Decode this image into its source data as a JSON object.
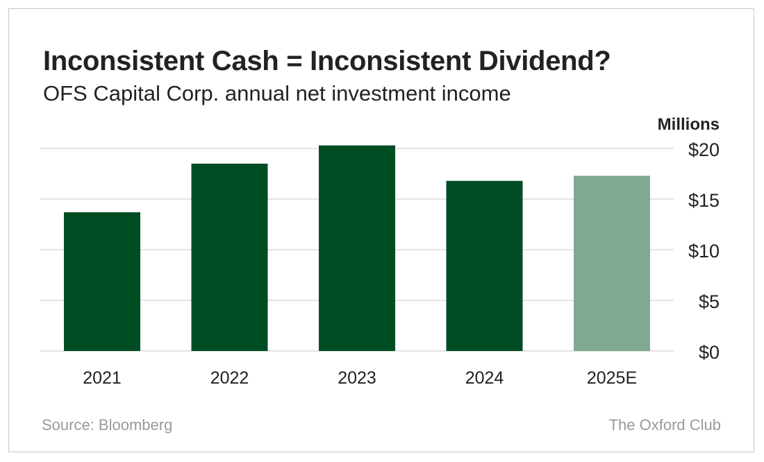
{
  "chart_data": {
    "type": "bar",
    "title": "Inconsistent Cash = Inconsistent Dividend?",
    "subtitle": "OFS Capital Corp. annual net investment income",
    "unit_label": "Millions",
    "categories": [
      "2021",
      "2022",
      "2023",
      "2024",
      "2025E"
    ],
    "values": [
      13.7,
      18.5,
      20.3,
      16.8,
      17.3
    ],
    "estimated": [
      false,
      false,
      false,
      false,
      true
    ],
    "ylim": [
      0,
      20
    ],
    "yticks": [
      0,
      5,
      10,
      15,
      20
    ],
    "ytick_labels": [
      "$0",
      "$5",
      "$10",
      "$15",
      "$20"
    ],
    "y_axis_side": "right",
    "grid": true,
    "colors": {
      "actual": "#004d23",
      "estimate": "#80a991",
      "grid": "#d4d4d4",
      "text": "#222222"
    }
  },
  "footer": {
    "source": "Source: Bloomberg",
    "brand": "The Oxford Club"
  }
}
